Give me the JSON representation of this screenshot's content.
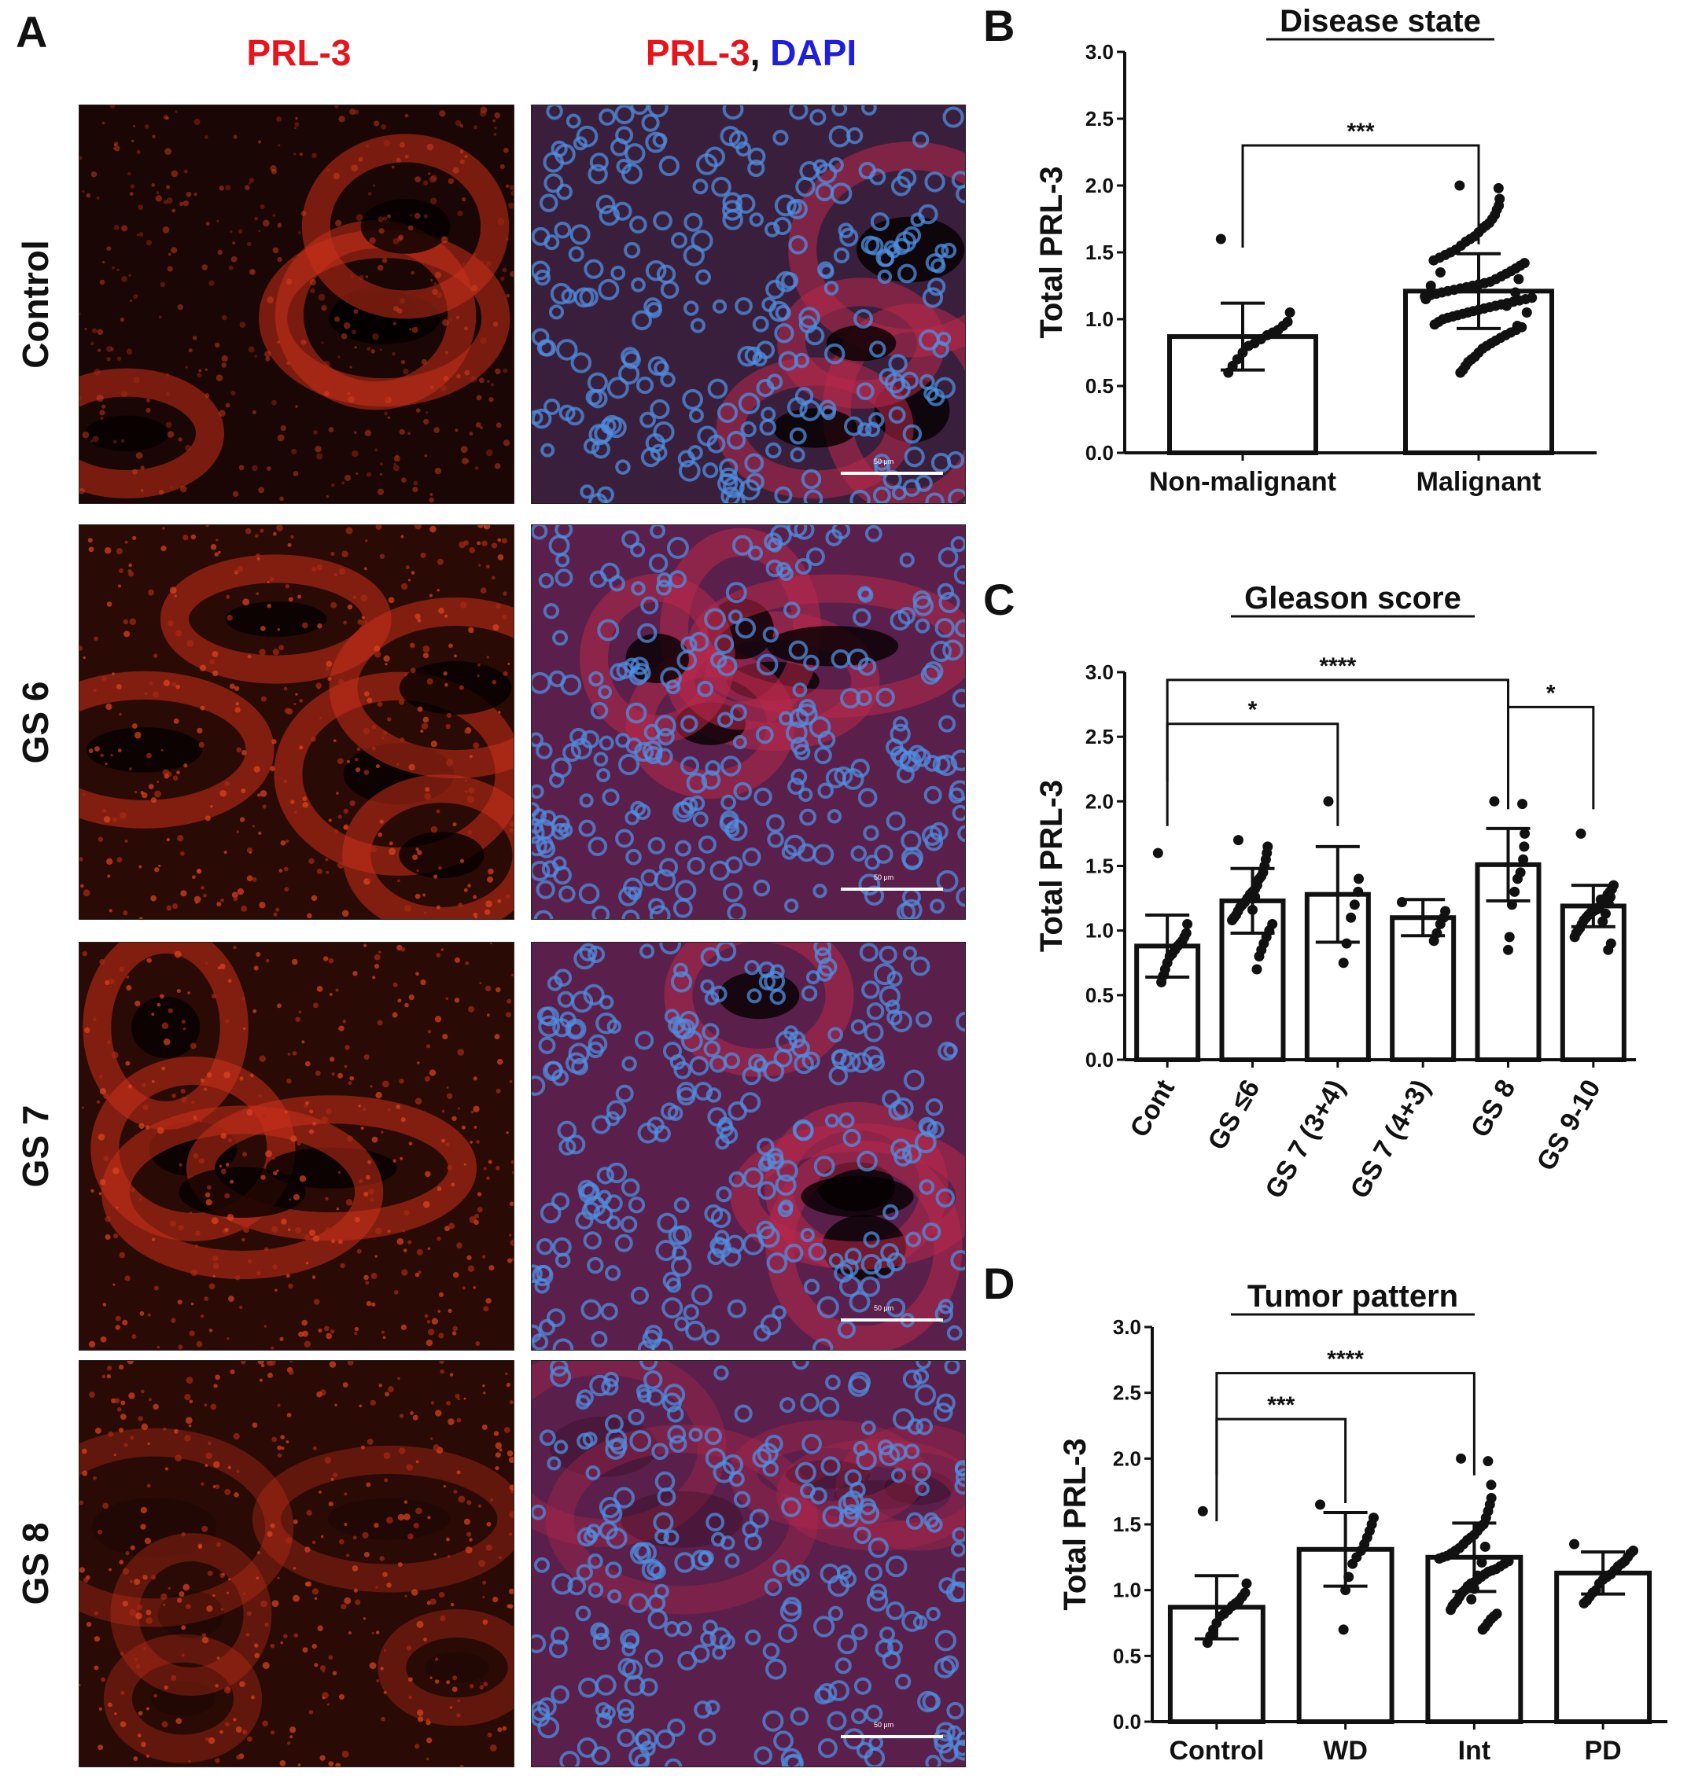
{
  "panel_a": {
    "letter": "A",
    "col_headers": {
      "left": "PRL-3",
      "right_red": "PRL-3",
      "right_sep": ", ",
      "right_blue": "DAPI"
    },
    "rows": [
      "Control",
      "GS 6",
      "GS 7",
      "GS 8"
    ],
    "scale_bar_label": "50 μm",
    "colors": {
      "red": "#e8131b",
      "blue": "#1e1edc",
      "tissue_red": "#c8301a",
      "nucleus_blue": "#4f8fe0"
    }
  },
  "chart_data": [
    {
      "letter": "B",
      "type": "bar",
      "title": "Disease state",
      "ylabel": "Total PRL-3",
      "xlabel": "",
      "ylim": [
        0,
        3.0
      ],
      "yticks": [
        "0.0",
        "0.5",
        "1.0",
        "1.5",
        "2.0",
        "2.5",
        "3.0"
      ],
      "categories": [
        "Non-malignant",
        "Malignant"
      ],
      "values": [
        0.87,
        1.21
      ],
      "sd": [
        0.25,
        0.28
      ],
      "points": [
        [
          1.6,
          1.05,
          0.98,
          0.95,
          0.92,
          0.9,
          0.88,
          0.85,
          0.82,
          0.8,
          0.75,
          0.7,
          0.65,
          0.6
        ],
        [
          2.0,
          1.98,
          1.9,
          1.85,
          1.82,
          1.78,
          1.75,
          1.72,
          1.7,
          1.68,
          1.65,
          1.62,
          1.6,
          1.58,
          1.55,
          1.52,
          1.5,
          1.48,
          1.46,
          1.44,
          1.42,
          1.4,
          1.38,
          1.36,
          1.34,
          1.32,
          1.3,
          1.28,
          1.27,
          1.26,
          1.25,
          1.24,
          1.23,
          1.22,
          1.21,
          1.2,
          1.19,
          1.18,
          1.17,
          1.16,
          1.15,
          1.14,
          1.13,
          1.12,
          1.11,
          1.1,
          1.09,
          1.08,
          1.07,
          1.06,
          1.05,
          1.04,
          1.03,
          1.02,
          1.01,
          1.0,
          0.98,
          0.96,
          0.94,
          0.92,
          0.9,
          0.88,
          0.86,
          0.84,
          0.82,
          0.8,
          0.78,
          0.75,
          0.72,
          0.7,
          0.68,
          0.65,
          0.62,
          0.6,
          1.35,
          1.25,
          1.15,
          1.05,
          0.95,
          1.3,
          1.2,
          1.1
        ]
      ],
      "significance": [
        {
          "from": 0,
          "to": 1,
          "label": "***",
          "y": 2.3
        }
      ],
      "x_labels_rotated": false
    },
    {
      "letter": "C",
      "type": "bar",
      "title": "Gleason score",
      "ylabel": "Total PRL-3",
      "xlabel": "",
      "ylim": [
        0,
        3.0
      ],
      "yticks": [
        "0.0",
        "0.5",
        "1.0",
        "1.5",
        "2.0",
        "2.5",
        "3.0"
      ],
      "categories": [
        "Cont",
        "GS ≤6",
        "GS 7 (3+4)",
        "GS 7 (4+3)",
        "GS 8",
        "GS 9-10"
      ],
      "values": [
        0.88,
        1.23,
        1.28,
        1.1,
        1.51,
        1.19
      ],
      "sd": [
        0.24,
        0.25,
        0.37,
        0.14,
        0.28,
        0.16
      ],
      "points": [
        [
          1.6,
          1.05,
          0.98,
          0.95,
          0.92,
          0.9,
          0.88,
          0.85,
          0.82,
          0.8,
          0.75,
          0.7,
          0.65,
          0.6
        ],
        [
          1.7,
          1.65,
          1.6,
          1.55,
          1.5,
          1.45,
          1.42,
          1.4,
          1.35,
          1.32,
          1.3,
          1.28,
          1.25,
          1.22,
          1.2,
          1.18,
          1.15,
          1.12,
          1.1,
          1.08,
          1.05,
          1.0,
          0.95,
          0.9,
          0.85,
          0.8,
          0.7,
          1.38,
          1.26,
          1.16
        ],
        [
          2.0,
          1.4,
          1.3,
          1.2,
          1.1,
          0.9,
          0.75
        ],
        [
          1.22,
          1.15,
          1.1,
          1.05,
          0.98,
          0.92
        ],
        [
          2.0,
          1.98,
          1.75,
          1.65,
          1.55,
          1.45,
          1.4,
          1.3,
          1.2,
          0.95,
          0.85
        ],
        [
          1.75,
          1.35,
          1.32,
          1.3,
          1.28,
          1.25,
          1.22,
          1.2,
          1.18,
          1.16,
          1.15,
          1.14,
          1.12,
          1.1,
          1.08,
          1.05,
          1.02,
          1.0,
          0.98,
          0.95,
          0.9,
          0.85,
          1.26,
          1.21,
          1.13,
          1.07,
          1.24,
          1.17
        ]
      ],
      "significance": [
        {
          "from": 0,
          "to": 4,
          "label": "****",
          "y": 2.94
        },
        {
          "from": 0,
          "to": 2,
          "label": "*",
          "y": 2.6
        },
        {
          "from": 4,
          "to": 5,
          "label": "*",
          "y": 2.73
        }
      ],
      "x_labels_rotated": true
    },
    {
      "letter": "D",
      "type": "bar",
      "title": "Tumor pattern",
      "ylabel": "Total PRL-3",
      "xlabel": "",
      "ylim": [
        0,
        3.0
      ],
      "yticks": [
        "0.0",
        "0.5",
        "1.0",
        "1.5",
        "2.0",
        "2.5",
        "3.0"
      ],
      "categories": [
        "Control",
        "WD",
        "Int",
        "PD"
      ],
      "values": [
        0.87,
        1.31,
        1.25,
        1.13
      ],
      "sd": [
        0.24,
        0.28,
        0.26,
        0.16
      ],
      "points": [
        [
          1.6,
          1.05,
          0.98,
          0.95,
          0.92,
          0.9,
          0.88,
          0.85,
          0.82,
          0.8,
          0.75,
          0.7,
          0.65,
          0.6
        ],
        [
          1.65,
          1.55,
          1.5,
          1.45,
          1.4,
          1.35,
          1.3,
          1.25,
          1.2,
          1.1,
          1.0,
          0.7
        ],
        [
          2.0,
          1.98,
          1.8,
          1.7,
          1.65,
          1.6,
          1.55,
          1.5,
          1.48,
          1.45,
          1.42,
          1.4,
          1.38,
          1.35,
          1.32,
          1.3,
          1.28,
          1.26,
          1.25,
          1.24,
          1.22,
          1.2,
          1.18,
          1.16,
          1.15,
          1.14,
          1.12,
          1.1,
          1.08,
          1.06,
          1.05,
          1.03,
          1.0,
          0.98,
          0.95,
          0.92,
          0.9,
          0.88,
          0.85,
          0.82,
          0.8,
          0.78,
          0.75,
          0.72,
          0.7,
          1.33,
          1.21,
          1.11,
          1.01,
          0.93
        ],
        [
          1.35,
          1.3,
          1.28,
          1.25,
          1.22,
          1.2,
          1.18,
          1.15,
          1.12,
          1.1,
          1.08,
          1.05,
          1.0,
          0.98,
          0.95,
          0.92,
          0.9
        ]
      ],
      "significance": [
        {
          "from": 0,
          "to": 2,
          "label": "****",
          "y": 2.65
        },
        {
          "from": 0,
          "to": 1,
          "label": "***",
          "y": 2.3
        }
      ],
      "x_labels_rotated": false
    }
  ]
}
